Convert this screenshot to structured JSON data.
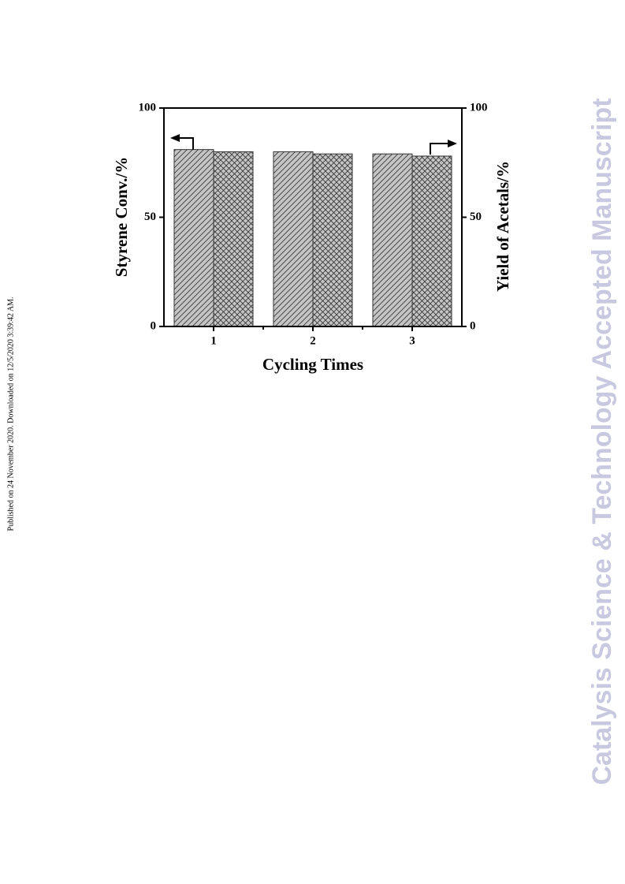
{
  "chart_data": {
    "type": "bar",
    "categories": [
      "1",
      "2",
      "3"
    ],
    "x_label": "Cycling Times",
    "y_label": "Styrene Conv./%",
    "y2_label": "Yield of Acetals/%",
    "series": [
      {
        "color": "#c4c4c4",
        "hatch": "diagonal",
        "values": [
          81,
          80,
          79
        ]
      },
      {
        "color": "#c4c4c4",
        "hatch": "cross",
        "axis": "y2",
        "values": [
          80,
          79,
          78
        ]
      }
    ],
    "ylim": [
      0,
      100
    ],
    "yticks": [
      0,
      50,
      100
    ],
    "y2lim": [
      0,
      100
    ],
    "y2ticks": [
      0,
      50,
      100
    ],
    "grid": false
  },
  "side_note": "Published on 24 November 2020. Downloaded on 12/5/2020 3:39:42 AM.",
  "watermark": "Catalysis Science & Technology Accepted Manuscript"
}
